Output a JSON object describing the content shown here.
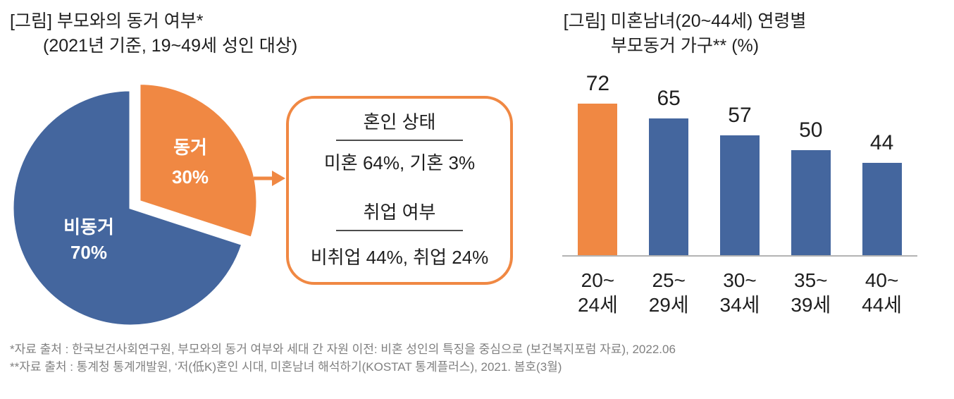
{
  "colors": {
    "blue": "#44669E",
    "orange": "#F08843",
    "text": "#1f1f1f",
    "footnote_gray": "#808080",
    "axis_gray": "#b3b3b3",
    "rule_gray": "#4d4d4d",
    "white": "#ffffff"
  },
  "left_chart": {
    "title_line1": "[그림] 부모와의 동거 여부*",
    "title_line2": "(2021년 기준, 19~49세 성인 대상)",
    "callout": {
      "section1_title": "혼인 상태",
      "section1_value": "미혼 64%, 기혼 3%",
      "section2_title": "취업 여부",
      "section2_value": "비취업 44%, 취업 24%"
    }
  },
  "right_chart": {
    "title_line1": "[그림] 미혼남녀(20~44세) 연령별",
    "title_line2": "부모동거 가구** (%)"
  },
  "footnotes": [
    "*자료 출처 : 한국보건사회연구원, 부모와의 동거 여부와 세대 간 자원 이전: 비혼 성인의 특징을 중심으로 (보건복지포럼 자료), 2022.06",
    "**자료 출처 : 통계청 통계개발원, ‘저(低K)혼인 시대, 미혼남녀 해석하기(KOSTAT 통계플러스), 2021. 봄호(3월)"
  ],
  "chart_data": [
    {
      "type": "pie",
      "title": "부모와의 동거 여부 (2021년 기준, 19~49세 성인 대상)",
      "unit": "%",
      "start_angle": "north",
      "direction": "clockwise",
      "slices": [
        {
          "label": "동거",
          "value": 30,
          "color": "#F08843",
          "exploded": true
        },
        {
          "label": "비동거",
          "value": 70,
          "color": "#44669E",
          "exploded": false
        }
      ],
      "annotation": "동거 30% → 혼인 상태: 미혼 64%, 기혼 3% / 취업 여부: 비취업 44%, 취업 24%"
    },
    {
      "type": "bar",
      "title": "미혼남녀(20~44세) 연령별 부모동거 가구 (%)",
      "categories": [
        "20~24세",
        "25~29세",
        "30~34세",
        "35~39세",
        "40~44세"
      ],
      "category_lines": [
        [
          "20~",
          "24세"
        ],
        [
          "25~",
          "29세"
        ],
        [
          "30~",
          "34세"
        ],
        [
          "35~",
          "39세"
        ],
        [
          "40~",
          "44세"
        ]
      ],
      "values": [
        72,
        65,
        57,
        50,
        44
      ],
      "bar_colors": [
        "#F08843",
        "#44669E",
        "#44669E",
        "#44669E",
        "#44669E"
      ],
      "ylabel": "%",
      "ylim": [
        0,
        80
      ],
      "grid": false,
      "value_labels": true,
      "legend": false
    }
  ]
}
